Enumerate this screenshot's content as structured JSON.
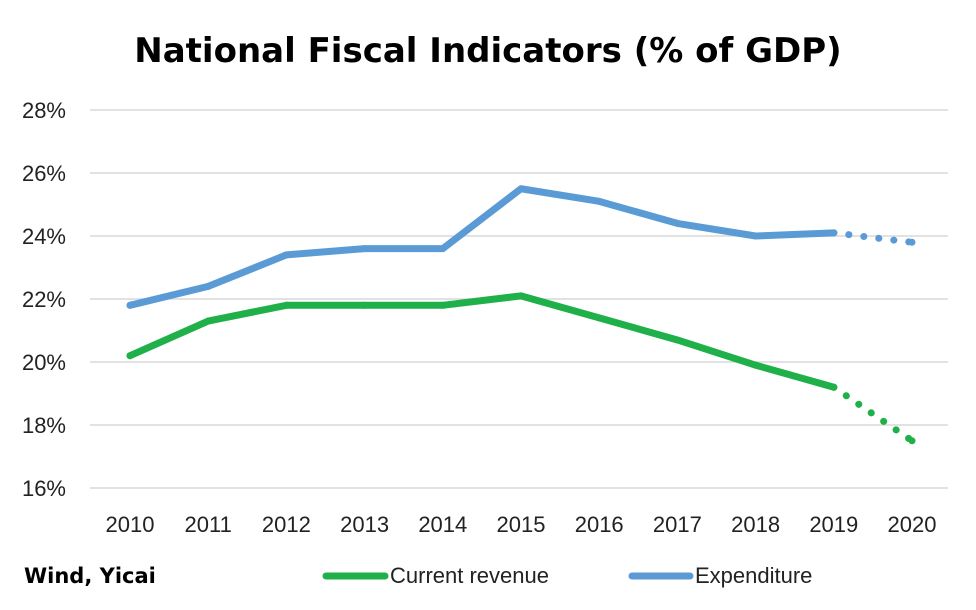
{
  "chart_data": {
    "type": "line",
    "title": "National Fiscal Indicators (% of GDP)",
    "source": "Wind, Yicai",
    "categories": [
      "2010",
      "2011",
      "2012",
      "2013",
      "2014",
      "2015",
      "2016",
      "2017",
      "2018",
      "2019",
      "2020"
    ],
    "ylim": [
      16,
      28
    ],
    "yticks": [
      "16%",
      "18%",
      "20%",
      "22%",
      "24%",
      "26%",
      "28%"
    ],
    "ytick_values": [
      16,
      18,
      20,
      22,
      24,
      26,
      28
    ],
    "grid": true,
    "legend_position": "bottom",
    "series": [
      {
        "name": "Current revenue",
        "color": "#1fb04a",
        "values": [
          20.2,
          21.3,
          21.8,
          21.8,
          21.8,
          22.1,
          21.4,
          20.7,
          19.9,
          19.2,
          17.5
        ],
        "projected_from_index": 9
      },
      {
        "name": "Expenditure",
        "color": "#5b9bd5",
        "values": [
          21.8,
          22.4,
          23.4,
          23.6,
          23.6,
          25.5,
          25.1,
          24.4,
          24.0,
          24.1,
          23.8
        ],
        "projected_from_index": 9
      }
    ]
  }
}
